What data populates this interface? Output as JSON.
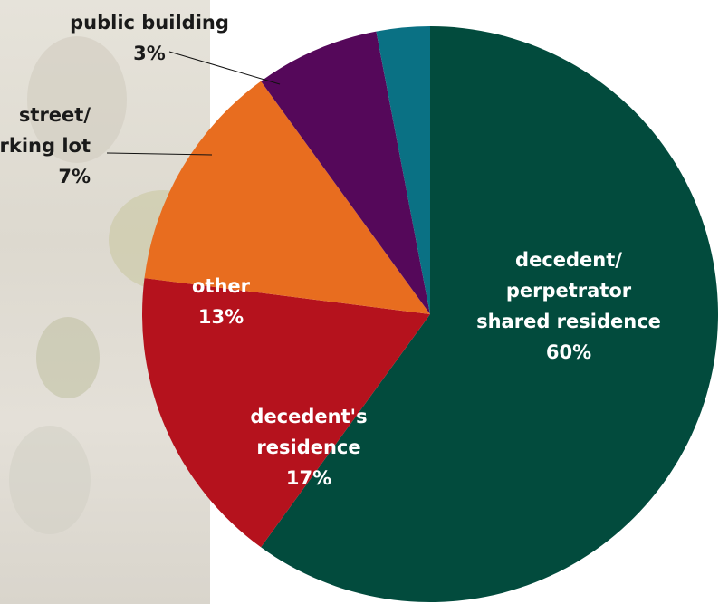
{
  "chart_data": {
    "type": "pie",
    "title": "",
    "start_angle_deg": 0,
    "direction": "clockwise",
    "slices": [
      {
        "label_lines": [
          "decedent/",
          "perpetrator",
          "shared residence",
          "60%"
        ],
        "value": 60,
        "color": "#024b3d",
        "label_color": "#ffffff",
        "label_placement": "inside"
      },
      {
        "label_lines": [
          "decedent's",
          "residence",
          "17%"
        ],
        "value": 17,
        "color": "#b5121d",
        "label_color": "#ffffff",
        "label_placement": "inside"
      },
      {
        "label_lines": [
          "other",
          "13%"
        ],
        "value": 13,
        "color": "#e86d1f",
        "label_color": "#ffffff",
        "label_placement": "inside"
      },
      {
        "label_lines": [
          "street/",
          "parking lot",
          "7%"
        ],
        "value": 7,
        "color": "#55085a",
        "label_color": "#1a1a1a",
        "label_placement": "outside"
      },
      {
        "label_lines": [
          "public building",
          "3%"
        ],
        "value": 3,
        "color": "#0a7184",
        "label_color": "#1a1a1a",
        "label_placement": "outside"
      }
    ]
  }
}
